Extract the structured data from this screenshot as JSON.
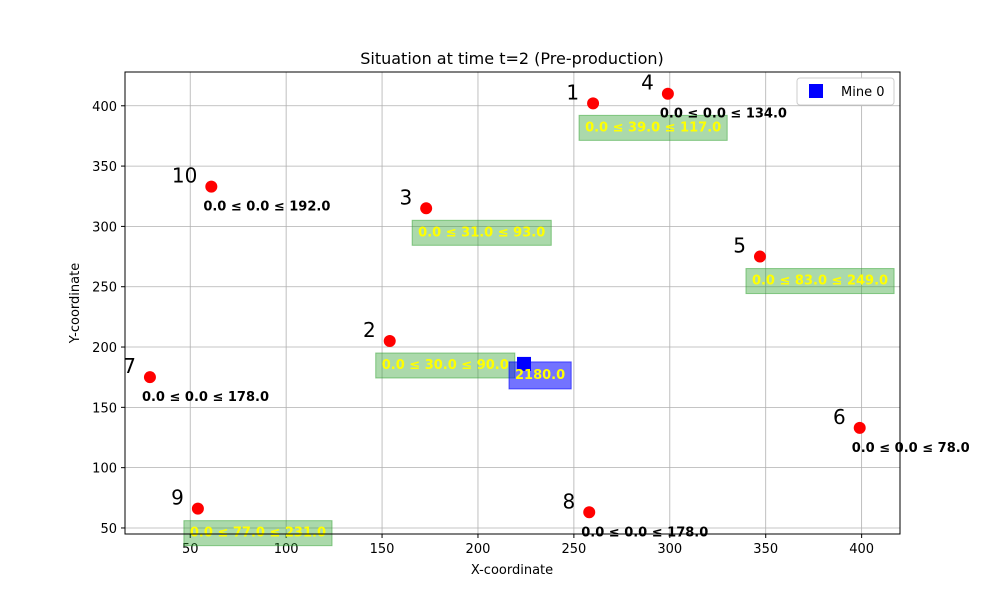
{
  "chart_data": {
    "type": "scatter",
    "title": "Situation at time t=2 (Pre-production)",
    "xlabel": "X-coordinate",
    "ylabel": "Y-coordinate",
    "xlim": [
      16,
      420
    ],
    "ylim": [
      45,
      428
    ],
    "xticks": [
      50,
      100,
      150,
      200,
      250,
      300,
      350,
      400
    ],
    "yticks": [
      50,
      100,
      150,
      200,
      250,
      300,
      350,
      400
    ],
    "grid": true,
    "legend": {
      "position": "top-right",
      "entries": [
        {
          "label": "Mine 0",
          "color": "#0000ff",
          "marker": "square"
        }
      ]
    },
    "colors": {
      "point": "#ff0000",
      "mine": "#0000ff",
      "active_box": "#2ca02c",
      "mine_box": "#0000ff",
      "active_text": "#ffff00"
    },
    "points": [
      {
        "id": "1",
        "x": 260,
        "y": 402,
        "label": "0.0 ≤ 39.0 ≤ 117.0",
        "active": true
      },
      {
        "id": "2",
        "x": 154,
        "y": 205,
        "label": "0.0 ≤ 30.0 ≤ 90.0",
        "active": true
      },
      {
        "id": "3",
        "x": 173,
        "y": 315,
        "label": "0.0 ≤ 31.0 ≤ 93.0",
        "active": true
      },
      {
        "id": "4",
        "x": 299,
        "y": 410,
        "label": "0.0 ≤ 0.0 ≤ 134.0",
        "active": false
      },
      {
        "id": "5",
        "x": 347,
        "y": 275,
        "label": "0.0 ≤ 83.0 ≤ 249.0",
        "active": true
      },
      {
        "id": "6",
        "x": 399,
        "y": 133,
        "label": "0.0 ≤ 0.0 ≤ 78.0",
        "active": false
      },
      {
        "id": "7",
        "x": 29,
        "y": 175,
        "label": "0.0 ≤ 0.0 ≤ 178.0",
        "active": false
      },
      {
        "id": "8",
        "x": 258,
        "y": 63,
        "label": "0.0 ≤ 0.0 ≤ 178.0",
        "active": false
      },
      {
        "id": "9",
        "x": 54,
        "y": 66,
        "label": "0.0 ≤ 77.0 ≤ 231.0",
        "active": true
      },
      {
        "id": "10",
        "x": 61,
        "y": 333,
        "label": "0.0 ≤ 0.0 ≤ 192.0",
        "active": false
      }
    ],
    "mines": [
      {
        "name": "Mine 0",
        "x": 224,
        "y": 186,
        "label": "2180.0"
      }
    ]
  }
}
